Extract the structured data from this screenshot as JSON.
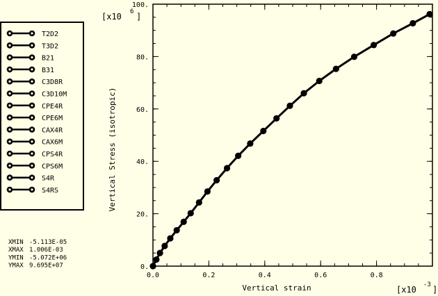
{
  "chart_data": {
    "type": "line",
    "title": "",
    "xlabel": "Vertical strain",
    "ylabel": "Vertical Stress (isotropic)",
    "x_multiplier": {
      "base": "[x10",
      "exp": "-3",
      "close": "]"
    },
    "y_multiplier": {
      "base": "[x10",
      "exp": "6",
      "close": "]"
    },
    "xlim": [
      0,
      1.0
    ],
    "ylim": [
      0,
      100
    ],
    "x_ticks": [
      0.0,
      0.2,
      0.4,
      0.6,
      0.8
    ],
    "x_tick_labels": [
      "0.0",
      "0.2",
      "0.4",
      "0.6",
      "0.8"
    ],
    "y_ticks": [
      0,
      20,
      40,
      60,
      80,
      100
    ],
    "y_tick_labels": [
      "0.",
      "20.",
      "40.",
      "60.",
      "80.",
      "100."
    ],
    "grid": false,
    "legend_placement": "left",
    "series": [
      {
        "name": "T2D2"
      },
      {
        "name": "T3D2"
      },
      {
        "name": "B21"
      },
      {
        "name": "B31"
      },
      {
        "name": "C3D8R"
      },
      {
        "name": "C3D10M"
      },
      {
        "name": "CPE4R"
      },
      {
        "name": "CPE6M"
      },
      {
        "name": "CAX4R"
      },
      {
        "name": "CAX6M"
      },
      {
        "name": "CPS4R"
      },
      {
        "name": "CPS6M"
      },
      {
        "name": "S4R"
      },
      {
        "name": "S4RS"
      }
    ],
    "x": [
      0.0,
      0.012,
      0.025,
      0.042,
      0.062,
      0.085,
      0.11,
      0.135,
      0.165,
      0.195,
      0.228,
      0.265,
      0.305,
      0.348,
      0.395,
      0.442,
      0.49,
      0.54,
      0.595,
      0.655,
      0.72,
      0.79,
      0.86,
      0.93,
      0.99
    ],
    "y": [
      0.0,
      2.5,
      5.0,
      7.7,
      10.6,
      13.7,
      16.9,
      20.2,
      24.3,
      28.5,
      32.8,
      37.4,
      42.1,
      46.8,
      51.6,
      56.4,
      61.2,
      66.0,
      70.7,
      75.3,
      79.9,
      84.4,
      88.8,
      92.7,
      96.2
    ],
    "stats": [
      {
        "label": "XMIN",
        "value": "-5.113E-05"
      },
      {
        "label": "XMAX",
        "value": " 1.006E-03"
      },
      {
        "label": "YMIN",
        "value": "-5.072E+06"
      },
      {
        "label": "YMAX",
        "value": " 9.695E+07"
      }
    ]
  }
}
